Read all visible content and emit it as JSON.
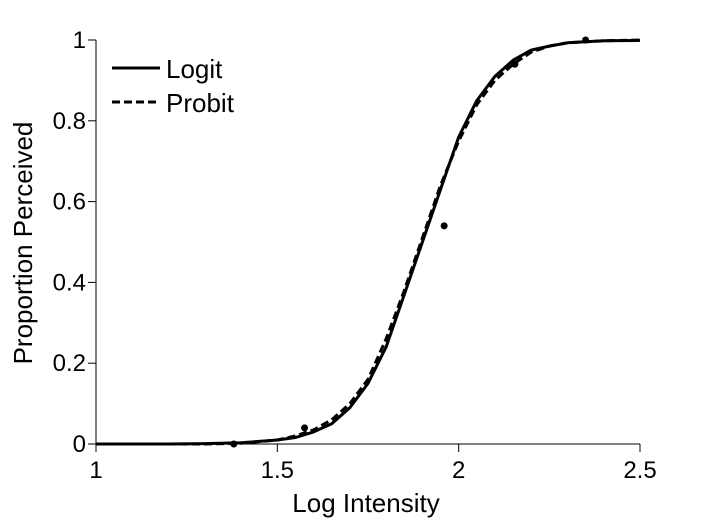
{
  "chart_data": {
    "type": "line",
    "title": "",
    "xlabel": "Log Intensity",
    "ylabel": "Proportion Perceived",
    "xlim": [
      1,
      2.5
    ],
    "ylim": [
      0,
      1
    ],
    "x_ticks": [
      1,
      1.5,
      2,
      2.5
    ],
    "x_tick_labels": [
      "1",
      "1.5",
      "2",
      "2.5"
    ],
    "y_ticks": [
      0,
      0.2,
      0.4,
      0.6,
      0.8,
      1
    ],
    "y_tick_labels": [
      "0",
      "0.2",
      "0.4",
      "0.6",
      "0.8",
      "1"
    ],
    "grid": false,
    "legend": {
      "placement": "top-left",
      "entries": [
        "Logit",
        "Probit"
      ]
    },
    "series": [
      {
        "name": "Logit",
        "style": "solid",
        "color": "#000000",
        "x": [
          1.0,
          1.1,
          1.2,
          1.3,
          1.4,
          1.5,
          1.55,
          1.6,
          1.65,
          1.7,
          1.75,
          1.8,
          1.85,
          1.9,
          1.95,
          2.0,
          2.05,
          2.1,
          2.15,
          2.2,
          2.25,
          2.3,
          2.4,
          2.5
        ],
        "y": [
          0.0,
          0.0,
          0.0,
          0.001,
          0.003,
          0.01,
          0.016,
          0.03,
          0.05,
          0.09,
          0.15,
          0.24,
          0.37,
          0.5,
          0.63,
          0.76,
          0.85,
          0.91,
          0.95,
          0.975,
          0.985,
          0.993,
          0.998,
          0.999
        ]
      },
      {
        "name": "Probit",
        "style": "dashed",
        "color": "#000000",
        "x": [
          1.0,
          1.1,
          1.2,
          1.3,
          1.4,
          1.5,
          1.55,
          1.6,
          1.65,
          1.7,
          1.75,
          1.8,
          1.85,
          1.9,
          1.95,
          2.0,
          2.05,
          2.1,
          2.15,
          2.2,
          2.25,
          2.3,
          2.4,
          2.5
        ],
        "y": [
          0.0,
          0.0,
          0.0,
          0.0,
          0.002,
          0.01,
          0.02,
          0.035,
          0.06,
          0.1,
          0.16,
          0.26,
          0.38,
          0.51,
          0.64,
          0.75,
          0.84,
          0.9,
          0.94,
          0.97,
          0.985,
          0.993,
          0.998,
          1.0
        ]
      },
      {
        "name": "",
        "style": "points",
        "color": "#000000",
        "x": [
          1.38,
          1.575,
          1.96,
          2.155,
          2.35
        ],
        "y": [
          0.0,
          0.04,
          0.54,
          0.94,
          1.0
        ]
      }
    ]
  }
}
